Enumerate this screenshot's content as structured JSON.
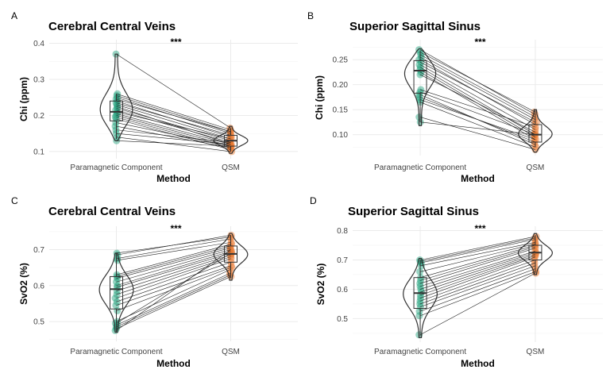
{
  "chart_data": [
    {
      "type": "violin",
      "panel_label": "A",
      "title": "Cerebral Central Veins",
      "xlabel": "Method",
      "ylabel": "Chi (ppm)",
      "categories": [
        "Paramagnetic Component",
        "QSM"
      ],
      "ylim": [
        0.08,
        0.41
      ],
      "yticks": [
        0.1,
        0.2,
        0.3,
        0.4
      ],
      "ytick_labels": [
        "0.1",
        "0.2",
        "0.3",
        "0.4"
      ],
      "significance": "***",
      "colors": [
        "#1b9e77",
        "#e8772e"
      ],
      "boxes": [
        {
          "q1": 0.185,
          "median": 0.21,
          "q3": 0.24,
          "lower": 0.135,
          "upper": 0.26
        },
        {
          "q1": 0.115,
          "median": 0.13,
          "q3": 0.145,
          "lower": 0.1,
          "upper": 0.165
        }
      ],
      "violin_range": [
        [
          0.13,
          0.37
        ],
        [
          0.095,
          0.17
        ]
      ],
      "paired": [
        [
          0.37,
          0.165
        ],
        [
          0.26,
          0.16
        ],
        [
          0.255,
          0.155
        ],
        [
          0.25,
          0.15
        ],
        [
          0.245,
          0.155
        ],
        [
          0.24,
          0.14
        ],
        [
          0.235,
          0.145
        ],
        [
          0.23,
          0.135
        ],
        [
          0.225,
          0.12
        ],
        [
          0.22,
          0.13
        ],
        [
          0.215,
          0.125
        ],
        [
          0.21,
          0.135
        ],
        [
          0.205,
          0.12
        ],
        [
          0.2,
          0.115
        ],
        [
          0.195,
          0.11
        ],
        [
          0.19,
          0.105
        ],
        [
          0.18,
          0.115
        ],
        [
          0.17,
          0.11
        ],
        [
          0.16,
          0.125
        ],
        [
          0.15,
          0.12
        ],
        [
          0.14,
          0.1
        ],
        [
          0.13,
          0.115
        ]
      ]
    },
    {
      "type": "violin",
      "panel_label": "B",
      "title": "Superior Sagittal Sinus",
      "xlabel": "Method",
      "ylabel": "Chi (ppm)",
      "categories": [
        "Paramagnetic Component",
        "QSM"
      ],
      "ylim": [
        0.058,
        0.29
      ],
      "yticks": [
        0.1,
        0.15,
        0.2,
        0.25
      ],
      "ytick_labels": [
        "0.10",
        "0.15",
        "0.20",
        "0.25"
      ],
      "significance": "***",
      "colors": [
        "#1b9e77",
        "#e8772e"
      ],
      "boxes": [
        {
          "q1": 0.183,
          "median": 0.228,
          "q3": 0.248,
          "lower": 0.125,
          "upper": 0.268
        },
        {
          "q1": 0.085,
          "median": 0.1,
          "q3": 0.12,
          "lower": 0.075,
          "upper": 0.15
        }
      ],
      "violin_range": [
        [
          0.118,
          0.272
        ],
        [
          0.065,
          0.15
        ]
      ],
      "paired": [
        [
          0.27,
          0.14
        ],
        [
          0.265,
          0.145
        ],
        [
          0.26,
          0.135
        ],
        [
          0.255,
          0.13
        ],
        [
          0.25,
          0.12
        ],
        [
          0.245,
          0.125
        ],
        [
          0.24,
          0.11
        ],
        [
          0.235,
          0.1
        ],
        [
          0.23,
          0.095
        ],
        [
          0.225,
          0.09
        ],
        [
          0.22,
          0.105
        ],
        [
          0.19,
          0.115
        ],
        [
          0.185,
          0.1
        ],
        [
          0.18,
          0.08
        ],
        [
          0.175,
          0.085
        ],
        [
          0.17,
          0.09
        ],
        [
          0.165,
          0.075
        ],
        [
          0.135,
          0.07
        ],
        [
          0.125,
          0.1
        ]
      ]
    },
    {
      "type": "violin",
      "panel_label": "C",
      "title": "Cerebral Central Veins",
      "xlabel": "Method",
      "ylabel": "SvO2 (%)",
      "categories": [
        "Paramagnetic Component",
        "QSM"
      ],
      "ylim": [
        0.445,
        0.765
      ],
      "yticks": [
        0.5,
        0.6,
        0.7
      ],
      "ytick_labels": [
        "0.5",
        "0.6",
        "0.7"
      ],
      "significance": "***",
      "colors": [
        "#1b9e77",
        "#e8772e"
      ],
      "boxes": [
        {
          "q1": 0.535,
          "median": 0.59,
          "q3": 0.625,
          "lower": 0.47,
          "upper": 0.69
        },
        {
          "q1": 0.665,
          "median": 0.688,
          "q3": 0.71,
          "lower": 0.62,
          "upper": 0.74
        }
      ],
      "violin_range": [
        [
          0.47,
          0.69
        ],
        [
          0.615,
          0.745
        ]
      ],
      "paired": [
        [
          0.69,
          0.735
        ],
        [
          0.685,
          0.74
        ],
        [
          0.675,
          0.73
        ],
        [
          0.67,
          0.72
        ],
        [
          0.63,
          0.715
        ],
        [
          0.625,
          0.71
        ],
        [
          0.62,
          0.705
        ],
        [
          0.61,
          0.7
        ],
        [
          0.6,
          0.695
        ],
        [
          0.595,
          0.69
        ],
        [
          0.585,
          0.685
        ],
        [
          0.575,
          0.68
        ],
        [
          0.565,
          0.675
        ],
        [
          0.555,
          0.665
        ],
        [
          0.545,
          0.655
        ],
        [
          0.53,
          0.65
        ],
        [
          0.5,
          0.645
        ],
        [
          0.495,
          0.69
        ],
        [
          0.49,
          0.635
        ],
        [
          0.485,
          0.63
        ],
        [
          0.48,
          0.625
        ],
        [
          0.475,
          0.7
        ]
      ]
    },
    {
      "type": "violin",
      "panel_label": "D",
      "title": "Superior Sagittal Sinus",
      "xlabel": "Method",
      "ylabel": "SvO2 (%)",
      "categories": [
        "Paramagnetic Component",
        "QSM"
      ],
      "ylim": [
        0.42,
        0.815
      ],
      "yticks": [
        0.5,
        0.6,
        0.7,
        0.8
      ],
      "ytick_labels": [
        "0.5",
        "0.6",
        "0.7",
        "0.8"
      ],
      "significance": "***",
      "colors": [
        "#1b9e77",
        "#e8772e"
      ],
      "boxes": [
        {
          "q1": 0.535,
          "median": 0.587,
          "q3": 0.64,
          "lower": 0.44,
          "upper": 0.7
        },
        {
          "q1": 0.7,
          "median": 0.725,
          "q3": 0.75,
          "lower": 0.655,
          "upper": 0.785
        }
      ],
      "violin_range": [
        [
          0.435,
          0.705
        ],
        [
          0.65,
          0.79
        ]
      ],
      "paired": [
        [
          0.7,
          0.78
        ],
        [
          0.695,
          0.775
        ],
        [
          0.69,
          0.77
        ],
        [
          0.68,
          0.76
        ],
        [
          0.66,
          0.755
        ],
        [
          0.64,
          0.75
        ],
        [
          0.63,
          0.745
        ],
        [
          0.62,
          0.74
        ],
        [
          0.61,
          0.73
        ],
        [
          0.6,
          0.725
        ],
        [
          0.59,
          0.72
        ],
        [
          0.58,
          0.715
        ],
        [
          0.57,
          0.71
        ],
        [
          0.56,
          0.7
        ],
        [
          0.55,
          0.69
        ],
        [
          0.54,
          0.68
        ],
        [
          0.525,
          0.67
        ],
        [
          0.51,
          0.66
        ],
        [
          0.445,
          0.655
        ]
      ]
    }
  ]
}
